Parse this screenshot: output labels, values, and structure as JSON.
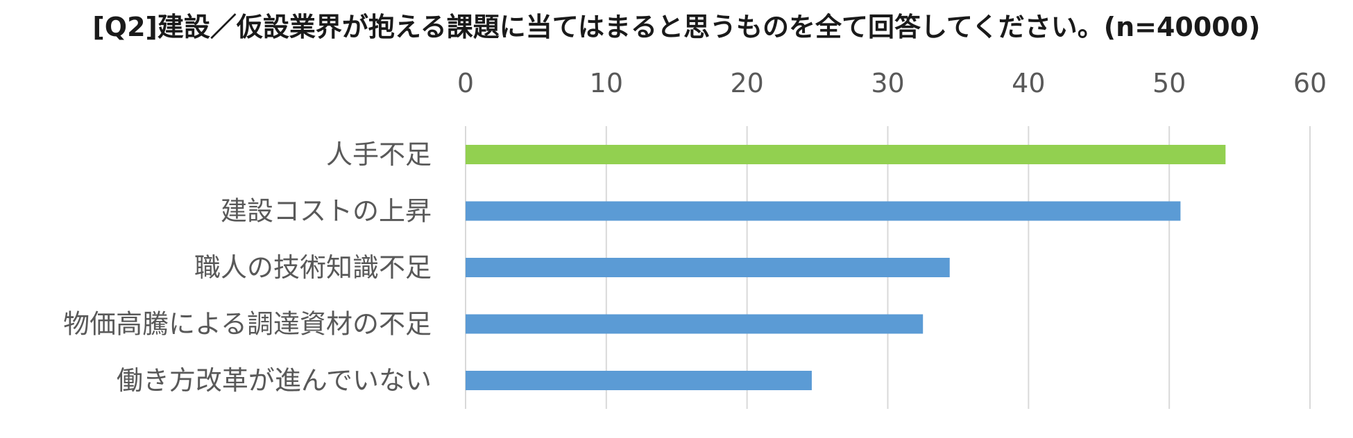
{
  "chart_data": {
    "type": "bar",
    "orientation": "horizontal",
    "title": "[Q2]建設／仮設業界が抱える課題に当てはまると思うものを全て回答してください。(n=40000)",
    "xlabel": "",
    "ylabel": "",
    "xlim": [
      0,
      60
    ],
    "ticks": [
      0,
      10,
      20,
      30,
      40,
      50,
      60
    ],
    "tick_labels": [
      "0",
      "10",
      "20",
      "30",
      "40",
      "50",
      "60"
    ],
    "axis_position": "top",
    "grid": true,
    "legend": "none",
    "categories": [
      "人手不足",
      "建設コストの上昇",
      "職人の技術知識不足",
      "物価高騰による調達資材の不足",
      "働き方改革が進んでいない"
    ],
    "values": [
      54.0,
      50.8,
      34.4,
      32.5,
      24.6
    ],
    "bar_colors": [
      "#92d050",
      "#5b9bd5",
      "#5b9bd5",
      "#5b9bd5",
      "#5b9bd5"
    ],
    "grid_color": "#d9d9d9",
    "text_color": "#595959",
    "title_color": "#1a1a1a"
  }
}
